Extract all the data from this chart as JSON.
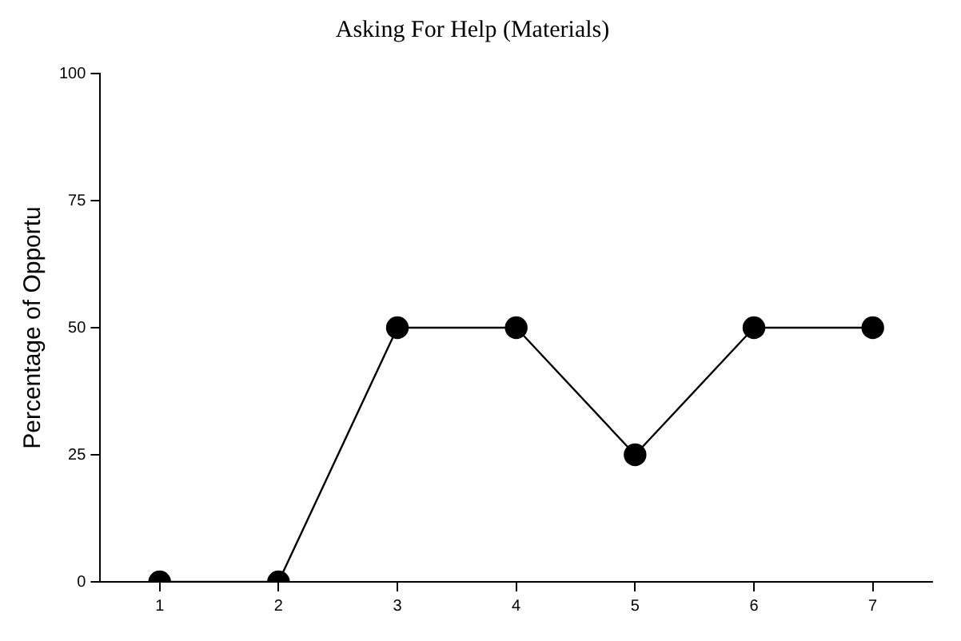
{
  "chart_data": {
    "type": "line",
    "title": "Asking For Help (Materials)",
    "ylabel": "Percentage of Opportu",
    "categories": [
      "1",
      "2",
      "3",
      "4",
      "5",
      "6",
      "7"
    ],
    "series": [
      {
        "color": "#000000",
        "values": [
          0,
          0,
          50,
          50,
          25,
          50,
          50
        ]
      }
    ],
    "ylim": [
      0,
      100
    ],
    "yticks": [
      0,
      25,
      50,
      75,
      100
    ],
    "grid": false,
    "legend": false,
    "marker": "circle",
    "line_style": "solid"
  }
}
